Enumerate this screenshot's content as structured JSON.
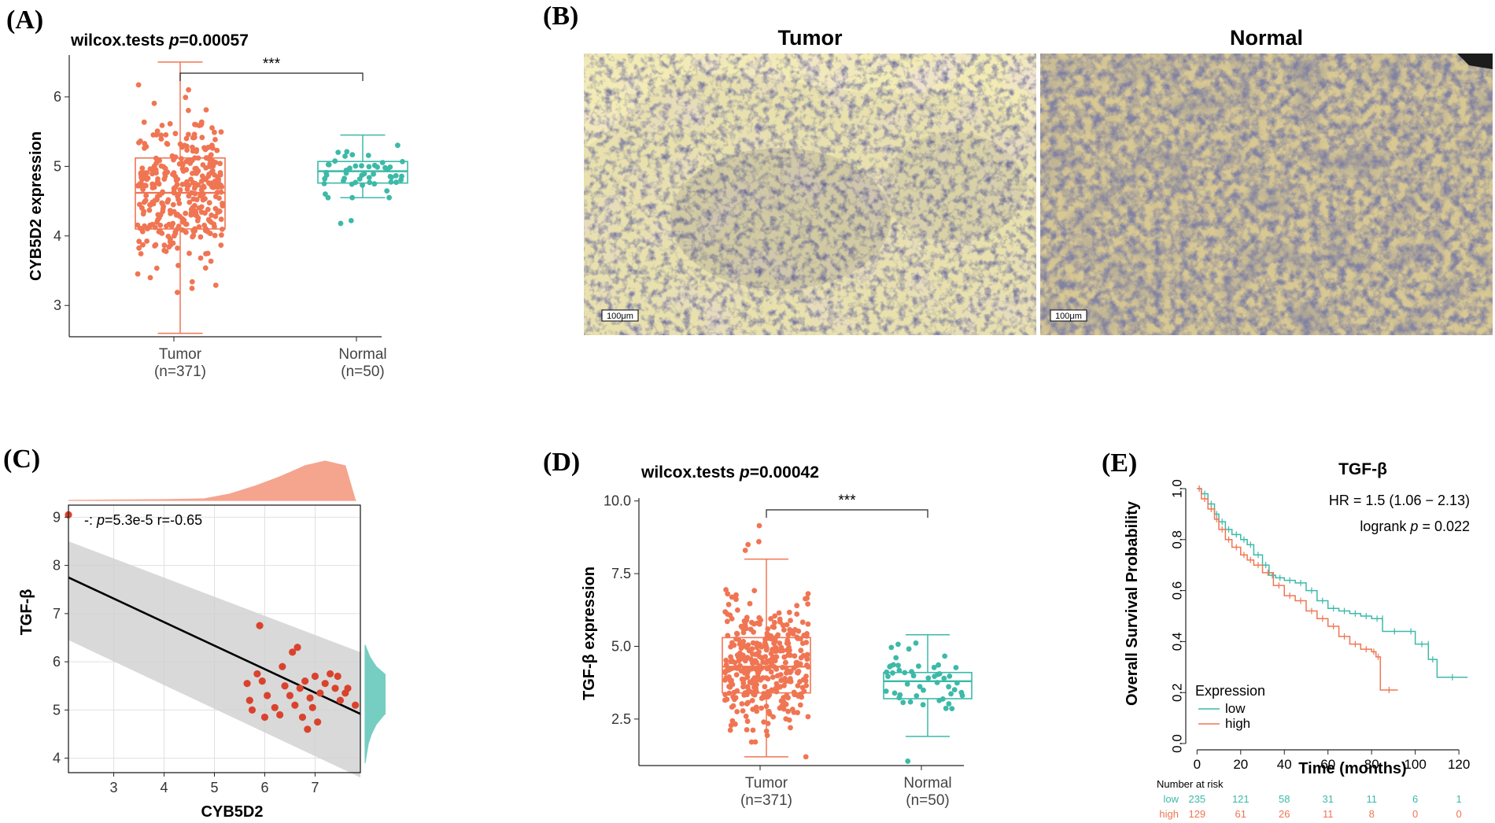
{
  "panels": {
    "A": {
      "label": "(A)"
    },
    "B": {
      "label": "(B)",
      "titles": [
        "Tumor",
        "Normal"
      ],
      "scale_bar": "100μm"
    },
    "C": {
      "label": "(C)"
    },
    "D": {
      "label": "(D)"
    },
    "E": {
      "label": "(E)"
    }
  },
  "colors": {
    "tumor": "#F07553",
    "normal": "#3DB9A8",
    "low": "#3DB9A8",
    "high": "#F07553",
    "fit_line": "#000000",
    "ci_band": "#CFCFCF"
  },
  "chart_data": [
    {
      "id": "A",
      "type": "box",
      "title_prefix": "wilcox.tests ",
      "title_p_label": "p",
      "title_p_value": "=0.00057",
      "ylabel": "CYB5D2 expression",
      "ylim": [
        2.55,
        6.6
      ],
      "yticks": [
        3,
        4,
        5,
        6
      ],
      "significance": "***",
      "groups": [
        {
          "name": "Tumor",
          "n_label": "(n=371)",
          "whisker_low": 2.6,
          "q1": 4.1,
          "median": 4.62,
          "q3": 5.12,
          "whisker_high": 6.5,
          "point_count": 371,
          "spread": 0.7
        },
        {
          "name": "Normal",
          "n_label": "(n=50)",
          "whisker_low": 4.55,
          "q1": 4.76,
          "median": 4.93,
          "q3": 5.07,
          "whisker_high": 5.45,
          "point_count": 50,
          "spread": 0.28,
          "outliers": [
            4.18,
            4.22
          ]
        }
      ]
    },
    {
      "id": "C",
      "type": "scatter",
      "xlabel": "CYB5D2",
      "ylabel": "TGF-β",
      "annotation_prefix": "-: ",
      "annotation_p_label": "p",
      "annotation_rest": "=5.3e-5 r=-0.65",
      "xlim": [
        2.1,
        7.9
      ],
      "ylim": [
        3.7,
        9.25
      ],
      "xticks": [
        3,
        4,
        5,
        6,
        7
      ],
      "yticks": [
        4,
        5,
        6,
        7,
        8,
        9
      ],
      "fit": {
        "x": [
          2.1,
          7.9
        ],
        "y": [
          7.75,
          4.92
        ]
      },
      "ci": {
        "upper": [
          8.5,
          6.2
        ],
        "lower": [
          6.45,
          3.6
        ]
      },
      "points": [
        [
          2.1,
          9.05
        ],
        [
          5.65,
          5.55
        ],
        [
          5.7,
          5.2
        ],
        [
          5.75,
          5.0
        ],
        [
          5.85,
          5.75
        ],
        [
          5.9,
          6.75
        ],
        [
          5.95,
          5.6
        ],
        [
          6.0,
          4.85
        ],
        [
          6.05,
          5.3
        ],
        [
          6.2,
          5.05
        ],
        [
          6.3,
          4.9
        ],
        [
          6.35,
          5.9
        ],
        [
          6.4,
          5.5
        ],
        [
          6.5,
          5.3
        ],
        [
          6.55,
          6.2
        ],
        [
          6.6,
          5.1
        ],
        [
          6.65,
          6.3
        ],
        [
          6.7,
          5.45
        ],
        [
          6.75,
          4.85
        ],
        [
          6.8,
          5.6
        ],
        [
          6.85,
          4.6
        ],
        [
          6.9,
          5.25
        ],
        [
          6.95,
          5.05
        ],
        [
          7.0,
          5.7
        ],
        [
          7.05,
          4.75
        ],
        [
          7.1,
          5.35
        ],
        [
          7.2,
          5.55
        ],
        [
          7.3,
          5.75
        ],
        [
          7.4,
          5.45
        ],
        [
          7.45,
          5.7
        ],
        [
          7.5,
          5.2
        ],
        [
          7.6,
          5.35
        ],
        [
          7.65,
          5.45
        ],
        [
          7.8,
          5.1
        ]
      ]
    },
    {
      "id": "D",
      "type": "box",
      "title_prefix": "wilcox.tests ",
      "title_p_label": "p",
      "title_p_value": "=0.00042",
      "ylabel": "TGF-β expression",
      "ylim": [
        0.9,
        10.1
      ],
      "yticks": [
        "2.5",
        "5.0",
        "7.5",
        "10.0"
      ],
      "significance": "***",
      "groups": [
        {
          "name": "Tumor",
          "n_label": "(n=371)",
          "whisker_low": 1.2,
          "q1": 3.4,
          "median": 4.3,
          "q3": 5.3,
          "whisker_high": 8.0,
          "point_count": 371,
          "spread": 1.4,
          "outliers": [
            8.3,
            8.5,
            8.6,
            9.15
          ]
        },
        {
          "name": "Normal",
          "n_label": "(n=50)",
          "whisker_low": 1.9,
          "q1": 3.2,
          "median": 3.8,
          "q3": 4.1,
          "whisker_high": 5.4,
          "point_count": 50,
          "spread": 0.8,
          "outliers": [
            1.05
          ]
        }
      ]
    },
    {
      "id": "E",
      "type": "line",
      "title": "TGF-β",
      "xlabel": "Time (months)",
      "ylabel": "Overall Survival Probability",
      "xlim": [
        -3,
        125
      ],
      "ylim": [
        0,
        1.0
      ],
      "xticks": [
        0,
        20,
        40,
        60,
        80,
        100,
        120
      ],
      "yticks": [
        "0.0",
        "0.2",
        "0.4",
        "0.6",
        "0.8",
        "1.0"
      ],
      "hr": "HR = 1.5 (1.06 − 2.13)",
      "logrank_prefix": "logrank ",
      "logrank_p_label": "p",
      "logrank_rest": " = 0.022",
      "legend_title": "Expression",
      "series": [
        {
          "name": "low",
          "x": [
            0,
            2,
            5,
            8,
            10,
            13,
            16,
            20,
            23,
            26,
            30,
            33,
            36,
            40,
            45,
            50,
            55,
            60,
            65,
            70,
            75,
            80,
            85,
            85,
            96,
            100,
            106,
            106,
            110,
            124
          ],
          "y": [
            1.0,
            0.98,
            0.94,
            0.9,
            0.87,
            0.84,
            0.82,
            0.8,
            0.78,
            0.74,
            0.7,
            0.66,
            0.65,
            0.64,
            0.63,
            0.6,
            0.56,
            0.53,
            0.52,
            0.51,
            0.5,
            0.49,
            0.49,
            0.44,
            0.44,
            0.39,
            0.39,
            0.33,
            0.26,
            0.26
          ]
        },
        {
          "name": "high",
          "x": [
            0,
            2,
            5,
            8,
            10,
            13,
            16,
            20,
            23,
            26,
            30,
            35,
            40,
            45,
            50,
            55,
            60,
            65,
            70,
            75,
            80,
            82,
            84,
            92
          ],
          "y": [
            1.0,
            0.96,
            0.92,
            0.88,
            0.84,
            0.8,
            0.77,
            0.74,
            0.72,
            0.7,
            0.67,
            0.62,
            0.58,
            0.56,
            0.52,
            0.49,
            0.46,
            0.42,
            0.39,
            0.37,
            0.36,
            0.34,
            0.21,
            0.21
          ]
        }
      ],
      "risk_table": {
        "title": "Number at risk",
        "rows": [
          {
            "name": "low",
            "values": [
              "235",
              "121",
              "58",
              "31",
              "11",
              "6",
              "1"
            ]
          },
          {
            "name": "high",
            "values": [
              "129",
              "61",
              "26",
              "11",
              "8",
              "0",
              "0"
            ]
          }
        ]
      }
    }
  ]
}
